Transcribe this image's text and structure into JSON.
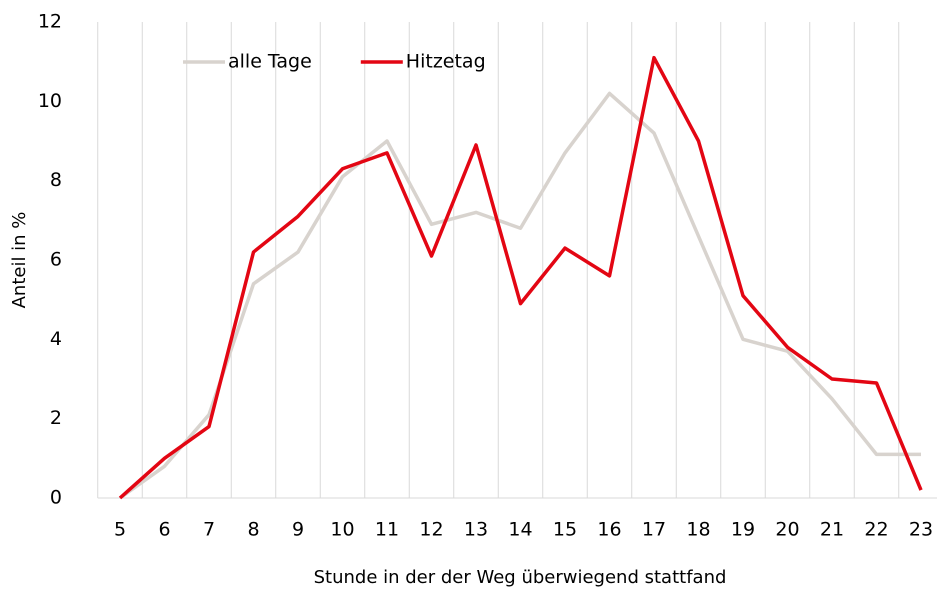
{
  "chart_data": {
    "type": "line",
    "x_label": "Stunde in der der Weg überwiegend stattfand",
    "y_label": "Anteil in %",
    "categories": [
      "5",
      "6",
      "7",
      "8",
      "9",
      "10",
      "11",
      "12",
      "13",
      "14",
      "15",
      "16",
      "17",
      "18",
      "19",
      "20",
      "21",
      "22",
      "23"
    ],
    "series": [
      {
        "name": "alle Tage",
        "color": "#d8d3ce",
        "values": [
          0,
          0.8,
          2.1,
          5.4,
          6.2,
          8.1,
          9.0,
          6.9,
          7.2,
          6.8,
          8.7,
          10.2,
          9.2,
          6.6,
          4.0,
          3.7,
          2.5,
          1.1,
          1.1
        ]
      },
      {
        "name": "Hitzetag",
        "color": "#e30613",
        "values": [
          0,
          1.0,
          1.8,
          6.2,
          7.1,
          8.3,
          8.7,
          6.1,
          8.9,
          4.9,
          6.3,
          5.6,
          11.1,
          9.0,
          5.1,
          3.8,
          3.0,
          2.9,
          0.2
        ]
      }
    ],
    "ylim": [
      0,
      12
    ],
    "yticks": [
      0,
      2,
      4,
      6,
      8,
      10,
      12
    ],
    "grid": true,
    "legend": "upper left"
  }
}
